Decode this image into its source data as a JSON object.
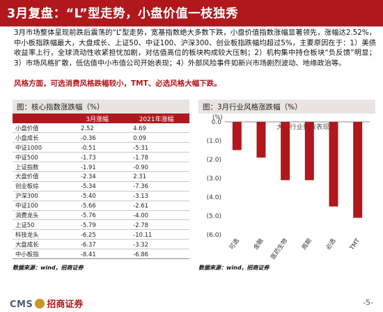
{
  "title": "3月复盘：“L”型走势，小盘价值一枝独秀",
  "intro": "3月市场整体呈现前跌后震荡的“L”型走势，宽基指数绝大多数下跌，小盘价值指数涨幅显著领先，涨幅达2.52%，中小板指跌幅最大，大盘成长、上证50、中证100、沪深300、创业板指跌幅均超过5%，主要原因在于：1）美债收益率上行，全球流动性收紧担忧加剧，对估值高位的板块构成较大压制；2）机构集中持仓板块“负反馈”明显；3）市场风格扩散，低估值中小市值公司开始表现；4）外部风险事件如新兴市场剧烈波动、地缘政治等。",
  "highlight": "风格方面，可选消费风格跌幅较小，TMT、必选风格大幅下跌。",
  "left": {
    "header": "图：核心指数涨跌幅（%）",
    "columns": [
      "",
      "3月涨幅",
      "2021年涨幅"
    ],
    "rows": [
      {
        "name": "小盘价值",
        "m3": "2.52",
        "y2021": "4.69"
      },
      {
        "name": "小盘成长",
        "m3": "-0.36",
        "y2021": "0.09"
      },
      {
        "name": "中证1000",
        "m3": "-0.51",
        "y2021": "-5.31"
      },
      {
        "name": "中证500",
        "m3": "-1.73",
        "y2021": "-1.78"
      },
      {
        "name": "上证指数",
        "m3": "-1.91",
        "y2021": "-0.90"
      },
      {
        "name": "大盘价值",
        "m3": "-2.34",
        "y2021": "2.31"
      },
      {
        "name": "创业板综",
        "m3": "-5.34",
        "y2021": "-7.36"
      },
      {
        "name": "沪深300",
        "m3": "-5.40",
        "y2021": "-3.13"
      },
      {
        "name": "中证100",
        "m3": "-5.66",
        "y2021": "-2.61"
      },
      {
        "name": "消费龙头",
        "m3": "-5.76",
        "y2021": "-4.00"
      },
      {
        "name": "上证50",
        "m3": "-5.79",
        "y2021": "-2.78"
      },
      {
        "name": "科技龙头",
        "m3": "-6.25",
        "y2021": "-10.11"
      },
      {
        "name": "大盘成长",
        "m3": "-6.37",
        "y2021": "-3.32"
      },
      {
        "name": "中小板指",
        "m3": "-8.41",
        "y2021": "-6.86"
      }
    ],
    "source": "数据来源：wind，招商证券"
  },
  "right": {
    "header": "图：3月行业风格涨跌幅（%）",
    "source": "数据来源：wind，招商证券"
  },
  "chart_data": {
    "type": "bar",
    "title": "大类行业指数表现",
    "categories": [
      "可选",
      "金融",
      "医药生物",
      "周期",
      "必选",
      "TMT"
    ],
    "values": [
      -1.5,
      -1.9,
      -3.1,
      -3.1,
      -4.5,
      -5.1
    ],
    "ylim": [
      -6.0,
      0.0
    ],
    "yticks": [
      "0.0",
      "(1.0)",
      "(2.0)",
      "(3.0)",
      "(4.0)",
      "(5.0)",
      "(6.0)"
    ],
    "yunit": "(%)",
    "bar_color": "#b0181d"
  },
  "footer": {
    "cms": "CMS",
    "brand": "招商证券",
    "page": "-5-"
  }
}
